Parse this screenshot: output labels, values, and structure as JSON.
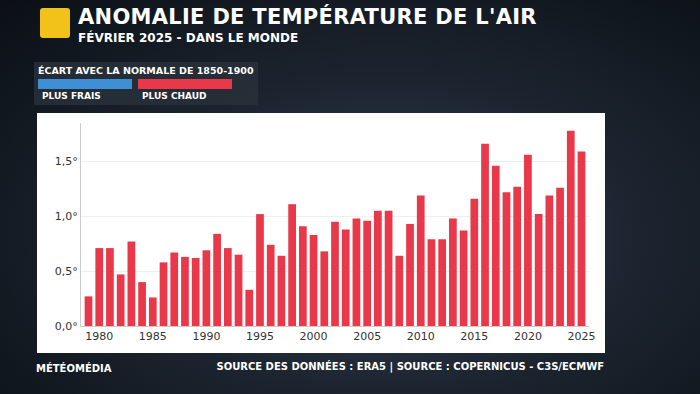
{
  "chart_data": {
    "type": "bar",
    "title": "ANOMALIE DE TEMPÉRATURE DE L'AIR",
    "subtitle": "FÉVRIER 2025 - DANS LE MONDE",
    "key_title": "ÉCART AVEC LA NORMALE DE 1850-1900",
    "key": [
      {
        "label": "PLUS FRAIS",
        "color": "#3f8fd6"
      },
      {
        "label": "PLUS CHAUD",
        "color": "#e8384a"
      }
    ],
    "brand": "MÉTÉOMÉDIA",
    "source": "SOURCE DES DONNÉES : ERA5 | SOURCE : COPERNICUS - C3S/ECMWF",
    "x": [
      1979,
      1980,
      1981,
      1982,
      1983,
      1984,
      1985,
      1986,
      1987,
      1988,
      1989,
      1990,
      1991,
      1992,
      1993,
      1994,
      1995,
      1996,
      1997,
      1998,
      1999,
      2000,
      2001,
      2002,
      2003,
      2004,
      2005,
      2006,
      2007,
      2008,
      2009,
      2010,
      2011,
      2012,
      2013,
      2014,
      2015,
      2016,
      2017,
      2018,
      2019,
      2020,
      2021,
      2022,
      2023,
      2024,
      2025
    ],
    "values": [
      0.27,
      0.71,
      0.71,
      0.47,
      0.77,
      0.4,
      0.26,
      0.58,
      0.67,
      0.63,
      0.62,
      0.69,
      0.84,
      0.71,
      0.65,
      0.33,
      1.02,
      0.74,
      0.64,
      1.11,
      0.91,
      0.83,
      0.68,
      0.95,
      0.88,
      0.98,
      0.96,
      1.05,
      1.05,
      0.64,
      0.93,
      1.19,
      0.79,
      0.79,
      0.98,
      0.87,
      1.16,
      1.66,
      1.46,
      1.22,
      1.27,
      1.56,
      1.02,
      1.19,
      1.26,
      1.78,
      1.59
    ],
    "color": "#e8384a",
    "xlim": [
      1978.3,
      2025.7
    ],
    "xticks": [
      1980,
      1985,
      1990,
      1995,
      2000,
      2005,
      2010,
      2015,
      2020,
      2025
    ],
    "ylim": [
      0,
      1.85
    ],
    "yticks": [
      {
        "value": 0,
        "label": "0,0°"
      },
      {
        "value": 0.5,
        "label": "0,5°"
      },
      {
        "value": 1,
        "label": "1,0°"
      },
      {
        "value": 1.5,
        "label": "1,5°"
      }
    ],
    "grid": true
  }
}
